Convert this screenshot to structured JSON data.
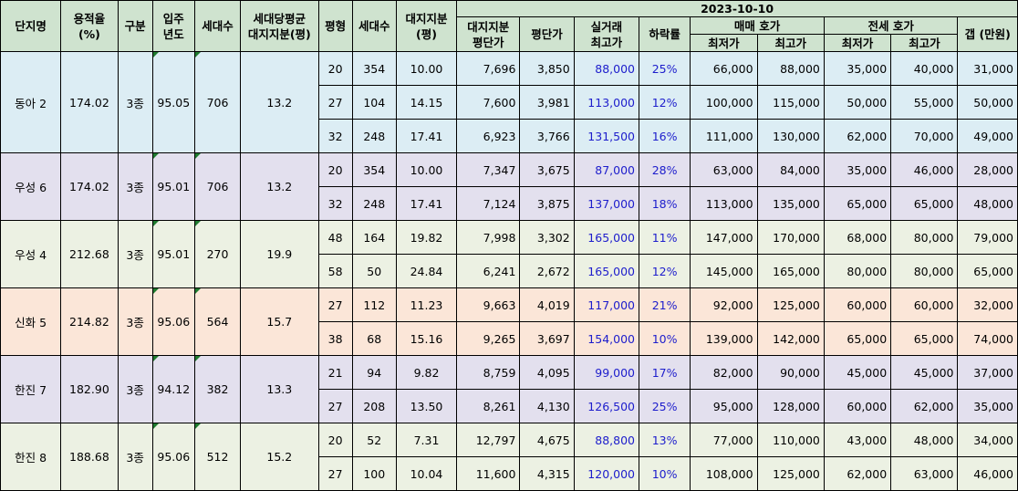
{
  "header": {
    "date": "2023-10-10",
    "complex": "단지명",
    "far": "용적율\n(%)",
    "zone": "구분",
    "year": "입주\n년도",
    "households": "세대수",
    "land_share": "세대당평균\n대지지분(평)",
    "pyeong": "평형",
    "unit_households": "세대수",
    "unit_land": "대지지분\n(평)",
    "land_price": "대지지분\n평단가",
    "pyeong_price": "평단가",
    "peak": "실거래\n최고가",
    "drop": "하락률",
    "sale_group": "매매 호가",
    "lease_group": "전세 호가",
    "min": "최저가",
    "max": "최고가",
    "gap": "갭 (만원)"
  },
  "complexes": [
    {
      "name": "동아 2",
      "far": "174.02",
      "zone": "3종",
      "year": "95.05",
      "households": "706",
      "land_share": "13.2",
      "rows": [
        {
          "pyeong": "20",
          "units": "354",
          "land": "10.00",
          "land_price": "7,696",
          "pyeong_price": "3,850",
          "peak": "88,000",
          "drop": "25%",
          "sale_min": "66,000",
          "sale_max": "88,000",
          "lease_min": "35,000",
          "lease_max": "40,000",
          "gap": "31,000"
        },
        {
          "pyeong": "27",
          "units": "104",
          "land": "14.15",
          "land_price": "7,600",
          "pyeong_price": "3,981",
          "peak": "113,000",
          "drop": "12%",
          "sale_min": "100,000",
          "sale_max": "115,000",
          "lease_min": "50,000",
          "lease_max": "55,000",
          "gap": "50,000"
        },
        {
          "pyeong": "32",
          "units": "248",
          "land": "17.41",
          "land_price": "6,923",
          "pyeong_price": "3,766",
          "peak": "131,500",
          "drop": "16%",
          "sale_min": "111,000",
          "sale_max": "130,000",
          "lease_min": "62,000",
          "lease_max": "70,000",
          "gap": "49,000"
        }
      ]
    },
    {
      "name": "우성 6",
      "far": "174.02",
      "zone": "3종",
      "year": "95.01",
      "households": "706",
      "land_share": "13.2",
      "rows": [
        {
          "pyeong": "20",
          "units": "354",
          "land": "10.00",
          "land_price": "7,347",
          "pyeong_price": "3,675",
          "peak": "87,000",
          "drop": "28%",
          "sale_min": "63,000",
          "sale_max": "84,000",
          "lease_min": "35,000",
          "lease_max": "46,000",
          "gap": "28,000"
        },
        {
          "pyeong": "32",
          "units": "248",
          "land": "17.41",
          "land_price": "7,124",
          "pyeong_price": "3,875",
          "peak": "137,000",
          "drop": "18%",
          "sale_min": "113,000",
          "sale_max": "135,000",
          "lease_min": "65,000",
          "lease_max": "65,000",
          "gap": "48,000"
        }
      ]
    },
    {
      "name": "우성 4",
      "far": "212.68",
      "zone": "3종",
      "year": "95.01",
      "households": "270",
      "land_share": "19.9",
      "rows": [
        {
          "pyeong": "48",
          "units": "164",
          "land": "19.82",
          "land_price": "7,998",
          "pyeong_price": "3,302",
          "peak": "165,000",
          "drop": "11%",
          "sale_min": "147,000",
          "sale_max": "170,000",
          "lease_min": "68,000",
          "lease_max": "80,000",
          "gap": "79,000"
        },
        {
          "pyeong": "58",
          "units": "50",
          "land": "24.84",
          "land_price": "6,241",
          "pyeong_price": "2,672",
          "peak": "165,000",
          "drop": "12%",
          "sale_min": "145,000",
          "sale_max": "165,000",
          "lease_min": "80,000",
          "lease_max": "80,000",
          "gap": "65,000"
        }
      ]
    },
    {
      "name": "신화 5",
      "far": "214.82",
      "zone": "3종",
      "year": "95.06",
      "households": "564",
      "land_share": "15.7",
      "rows": [
        {
          "pyeong": "27",
          "units": "112",
          "land": "11.23",
          "land_price": "9,663",
          "pyeong_price": "4,019",
          "peak": "117,000",
          "drop": "21%",
          "sale_min": "92,000",
          "sale_max": "125,000",
          "lease_min": "60,000",
          "lease_max": "60,000",
          "gap": "32,000"
        },
        {
          "pyeong": "38",
          "units": "68",
          "land": "15.16",
          "land_price": "9,265",
          "pyeong_price": "3,697",
          "peak": "154,000",
          "drop": "10%",
          "sale_min": "139,000",
          "sale_max": "142,000",
          "lease_min": "65,000",
          "lease_max": "65,000",
          "gap": "74,000"
        }
      ]
    },
    {
      "name": "한진 7",
      "far": "182.90",
      "zone": "3종",
      "year": "94.12",
      "households": "382",
      "land_share": "13.3",
      "rows": [
        {
          "pyeong": "21",
          "units": "94",
          "land": "9.82",
          "land_price": "8,759",
          "pyeong_price": "4,095",
          "peak": "99,000",
          "drop": "17%",
          "sale_min": "82,000",
          "sale_max": "90,000",
          "lease_min": "45,000",
          "lease_max": "45,000",
          "gap": "37,000"
        },
        {
          "pyeong": "27",
          "units": "208",
          "land": "13.50",
          "land_price": "8,261",
          "pyeong_price": "4,130",
          "peak": "126,500",
          "drop": "25%",
          "sale_min": "95,000",
          "sale_max": "128,000",
          "lease_min": "60,000",
          "lease_max": "62,000",
          "gap": "35,000"
        }
      ]
    },
    {
      "name": "한진 8",
      "far": "188.68",
      "zone": "3종",
      "year": "95.06",
      "households": "512",
      "land_share": "15.2",
      "rows": [
        {
          "pyeong": "20",
          "units": "52",
          "land": "7.31",
          "land_price": "12,797",
          "pyeong_price": "4,675",
          "peak": "88,800",
          "drop": "13%",
          "sale_min": "77,000",
          "sale_max": "110,000",
          "lease_min": "43,000",
          "lease_max": "48,000",
          "gap": "34,000"
        },
        {
          "pyeong": "27",
          "units": "100",
          "land": "10.04",
          "land_price": "11,600",
          "pyeong_price": "4,315",
          "peak": "120,000",
          "drop": "10%",
          "sale_min": "108,000",
          "sale_max": "125,000",
          "lease_min": "62,000",
          "lease_max": "63,000",
          "gap": "46,000"
        }
      ]
    }
  ]
}
